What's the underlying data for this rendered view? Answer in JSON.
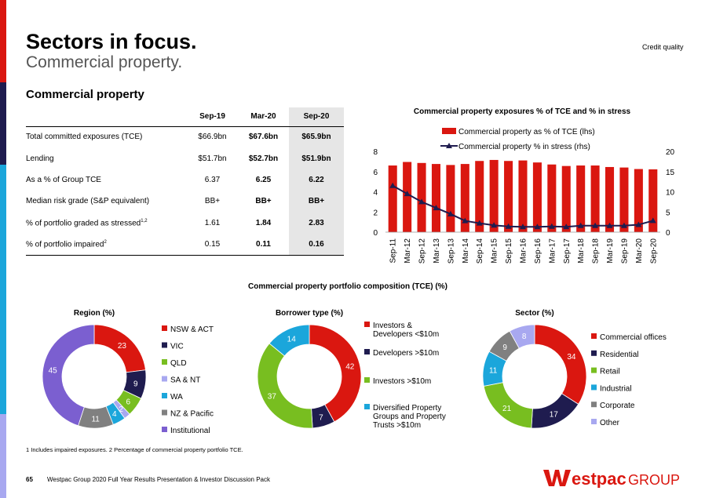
{
  "header": {
    "title": "Sectors in focus.",
    "subtitle": "Commercial property.",
    "credit_quality": "Credit quality",
    "section_title": "Commercial property"
  },
  "table": {
    "columns": [
      "Sep-19",
      "Mar-20",
      "Sep-20"
    ],
    "rows": [
      {
        "label": "Total committed exposures (TCE)",
        "sup": "",
        "values": [
          "$66.9bn",
          "$67.6bn",
          "$65.9bn"
        ]
      },
      {
        "label": "Lending",
        "sup": "",
        "values": [
          "$51.7bn",
          "$52.7bn",
          "$51.9bn"
        ]
      },
      {
        "label": "As a % of Group TCE",
        "sup": "",
        "values": [
          "6.37",
          "6.25",
          "6.22"
        ]
      },
      {
        "label": "Median risk grade (S&P equivalent)",
        "sup": "",
        "values": [
          "BB+",
          "BB+",
          "BB+"
        ]
      },
      {
        "label": "% of portfolio graded as stressed",
        "sup": "1,2",
        "values": [
          "1.61",
          "1.84",
          "2.83"
        ]
      },
      {
        "label": "% of portfolio impaired",
        "sup": "2",
        "values": [
          "0.15",
          "0.11",
          "0.16"
        ]
      }
    ]
  },
  "chart_data": [
    {
      "type": "bar",
      "title": "Commercial property exposures % of TCE and % in stress",
      "categories": [
        "Sep-11",
        "Mar-12",
        "Sep-12",
        "Mar-13",
        "Sep-13",
        "Mar-14",
        "Sep-14",
        "Mar-15",
        "Sep-15",
        "Mar-16",
        "Sep-16",
        "Mar-17",
        "Sep-17",
        "Mar-18",
        "Sep-18",
        "Mar-19",
        "Sep-19",
        "Mar-20",
        "Sep-20"
      ],
      "series": [
        {
          "name": "Commercial property as % of TCE (lhs)",
          "kind": "bar",
          "axis": "left",
          "values": [
            6.6,
            6.95,
            6.85,
            6.75,
            6.65,
            6.75,
            7.05,
            7.15,
            7.05,
            7.1,
            6.9,
            6.7,
            6.55,
            6.6,
            6.6,
            6.45,
            6.4,
            6.25,
            6.22
          ]
        },
        {
          "name": "Commercial property % in stress (rhs)",
          "kind": "line",
          "axis": "right",
          "values": [
            11.5,
            9.5,
            7.5,
            6,
            4.5,
            2.8,
            2.2,
            1.7,
            1.4,
            1.3,
            1.3,
            1.4,
            1.3,
            1.6,
            1.6,
            1.6,
            1.61,
            1.84,
            2.83
          ]
        }
      ],
      "yleft": {
        "range": [
          0,
          8
        ],
        "ticks": [
          0,
          2,
          4,
          6,
          8
        ]
      },
      "yright": {
        "range": [
          0,
          20
        ],
        "ticks": [
          0,
          5,
          10,
          15,
          20
        ]
      }
    },
    {
      "type": "pie",
      "title": "Region (%)",
      "labels": [
        "NSW & ACT",
        "VIC",
        "QLD",
        "SA & NT",
        "WA",
        "NZ & Pacific",
        "Institutional"
      ],
      "values": [
        23,
        9,
        6,
        2,
        4,
        11,
        45
      ],
      "display": [
        "23",
        "9",
        "6",
        "2",
        "4",
        "11",
        "45"
      ]
    },
    {
      "type": "pie",
      "title": "Borrower type (%)",
      "labels": [
        "Investors & Developers <$10m",
        "Developers >$10m",
        "Investors >$10m",
        "Diversified Property Groups and Property Trusts >$10m"
      ],
      "values": [
        42,
        7,
        37,
        14
      ],
      "display": [
        "42",
        "7",
        "37",
        "14"
      ]
    },
    {
      "type": "pie",
      "title": "Sector (%)",
      "labels": [
        "Commercial offices",
        "Residential",
        "Retail",
        "Industrial",
        "Corporate",
        "Other"
      ],
      "values": [
        34,
        17,
        21,
        11,
        9,
        8
      ],
      "display": [
        "34",
        "17",
        "21",
        "11",
        "9",
        "8"
      ]
    }
  ],
  "composition_title": "Commercial property portfolio composition (TCE) (%)",
  "legends": {
    "region": [
      "NSW & ACT",
      "VIC",
      "QLD",
      "SA & NT",
      "WA",
      "NZ & Pacific",
      "Institutional"
    ],
    "borrower": [
      "Investors &",
      "Developers <$10m",
      "Developers >$10m",
      "Investors >$10m",
      "Diversified Property",
      "Groups and Property",
      "Trusts >$10m"
    ],
    "sector": [
      "Commercial offices",
      "Residential",
      "Retail",
      "Industrial",
      "Corporate",
      "Other"
    ]
  },
  "footnote": "1 Includes impaired exposures. 2 Percentage of commercial property portfolio TCE.",
  "footer": {
    "page_number": "65",
    "text": "Westpac Group 2020 Full Year Results Presentation & Investor Discussion Pack",
    "logo_text": "estpac",
    "logo_group": "GROUP"
  },
  "colors": {
    "red": "#DA1710",
    "navy": "#1F1C4F",
    "green": "#78BE20",
    "lavender": "#A8A8F0",
    "cyan": "#1BA6DB",
    "grey": "#808080",
    "purple": "#7B5FD0",
    "sidebar": [
      "#DA1710",
      "#1F1C4F",
      "#1BA6DB",
      "#1BA6DB",
      "#A8A8F0"
    ]
  }
}
